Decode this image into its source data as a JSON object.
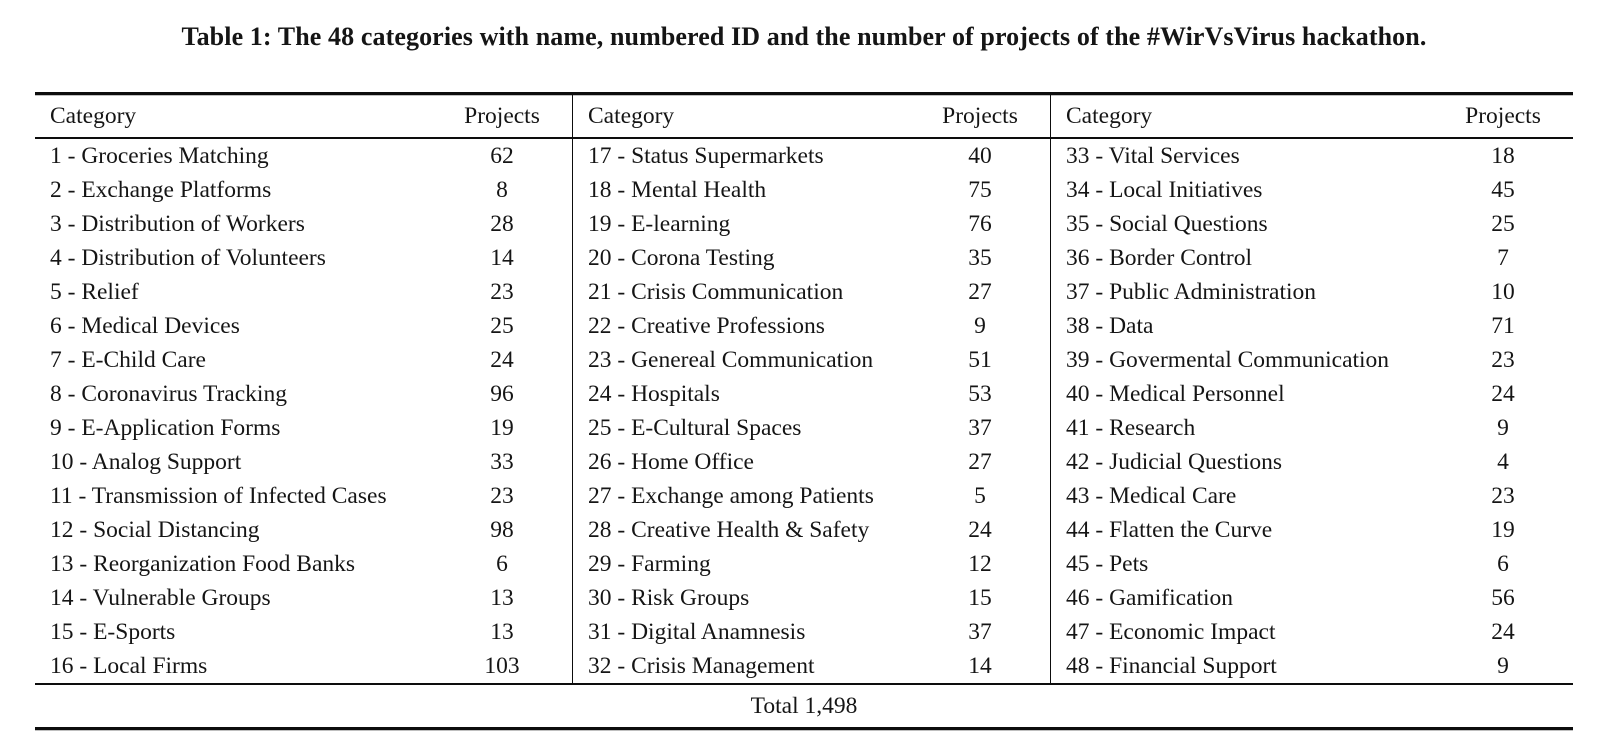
{
  "title": "Table 1: The 48 categories with name, numbered ID and the number of projects of the #WirVsVirus hackathon.",
  "table": {
    "header": {
      "category": "Category",
      "projects": "Projects"
    },
    "groups": [
      {
        "rows": [
          {
            "label": "1 - Groceries Matching",
            "projects": "62"
          },
          {
            "label": "2 - Exchange Platforms",
            "projects": "8"
          },
          {
            "label": "3 - Distribution of Workers",
            "projects": "28"
          },
          {
            "label": "4 - Distribution of Volunteers",
            "projects": "14"
          },
          {
            "label": "5 - Relief",
            "projects": "23"
          },
          {
            "label": "6 - Medical Devices",
            "projects": "25"
          },
          {
            "label": "7 - E-Child Care",
            "projects": "24"
          },
          {
            "label": "8 - Coronavirus Tracking",
            "projects": "96"
          },
          {
            "label": "9 - E-Application Forms",
            "projects": "19"
          },
          {
            "label": "10 - Analog Support",
            "projects": "33"
          },
          {
            "label": "11 - Transmission of Infected Cases",
            "projects": "23"
          },
          {
            "label": "12 - Social Distancing",
            "projects": "98"
          },
          {
            "label": "13 - Reorganization Food Banks",
            "projects": "6"
          },
          {
            "label": "14 - Vulnerable Groups",
            "projects": "13"
          },
          {
            "label": "15 - E-Sports",
            "projects": "13"
          },
          {
            "label": "16 - Local Firms",
            "projects": "103"
          }
        ]
      },
      {
        "rows": [
          {
            "label": "17 - Status Supermarkets",
            "projects": "40"
          },
          {
            "label": "18 - Mental Health",
            "projects": "75"
          },
          {
            "label": "19 - E-learning",
            "projects": "76"
          },
          {
            "label": "20 - Corona Testing",
            "projects": "35"
          },
          {
            "label": "21 - Crisis Communication",
            "projects": "27"
          },
          {
            "label": "22 - Creative Professions",
            "projects": "9"
          },
          {
            "label": "23 - Genereal Communication",
            "projects": "51"
          },
          {
            "label": "24 - Hospitals",
            "projects": "53"
          },
          {
            "label": "25 - E-Cultural Spaces",
            "projects": "37"
          },
          {
            "label": "26 - Home Office",
            "projects": "27"
          },
          {
            "label": "27 - Exchange among Patients",
            "projects": "5"
          },
          {
            "label": "28 - Creative Health & Safety",
            "projects": "24"
          },
          {
            "label": "29 - Farming",
            "projects": "12"
          },
          {
            "label": "30 - Risk Groups",
            "projects": "15"
          },
          {
            "label": "31 - Digital Anamnesis",
            "projects": "37"
          },
          {
            "label": "32 - Crisis Management",
            "projects": "14"
          }
        ]
      },
      {
        "rows": [
          {
            "label": "33 - Vital Services",
            "projects": "18"
          },
          {
            "label": "34 - Local Initiatives",
            "projects": "45"
          },
          {
            "label": "35 - Social Questions",
            "projects": "25"
          },
          {
            "label": "36 - Border Control",
            "projects": "7"
          },
          {
            "label": "37 - Public Administration",
            "projects": "10"
          },
          {
            "label": "38 - Data",
            "projects": "71"
          },
          {
            "label": "39 - Govermental Communication",
            "projects": "23"
          },
          {
            "label": "40 - Medical Personnel",
            "projects": "24"
          },
          {
            "label": "41 - Research",
            "projects": "9"
          },
          {
            "label": "42 - Judicial Questions",
            "projects": "4"
          },
          {
            "label": "43 - Medical Care",
            "projects": "23"
          },
          {
            "label": "44 - Flatten the Curve",
            "projects": "19"
          },
          {
            "label": "45 - Pets",
            "projects": "6"
          },
          {
            "label": "46 - Gamification",
            "projects": "56"
          },
          {
            "label": "47 - Economic Impact",
            "projects": "24"
          },
          {
            "label": "48 - Financial Support",
            "projects": "9"
          }
        ]
      }
    ],
    "total": "Total 1,498"
  }
}
